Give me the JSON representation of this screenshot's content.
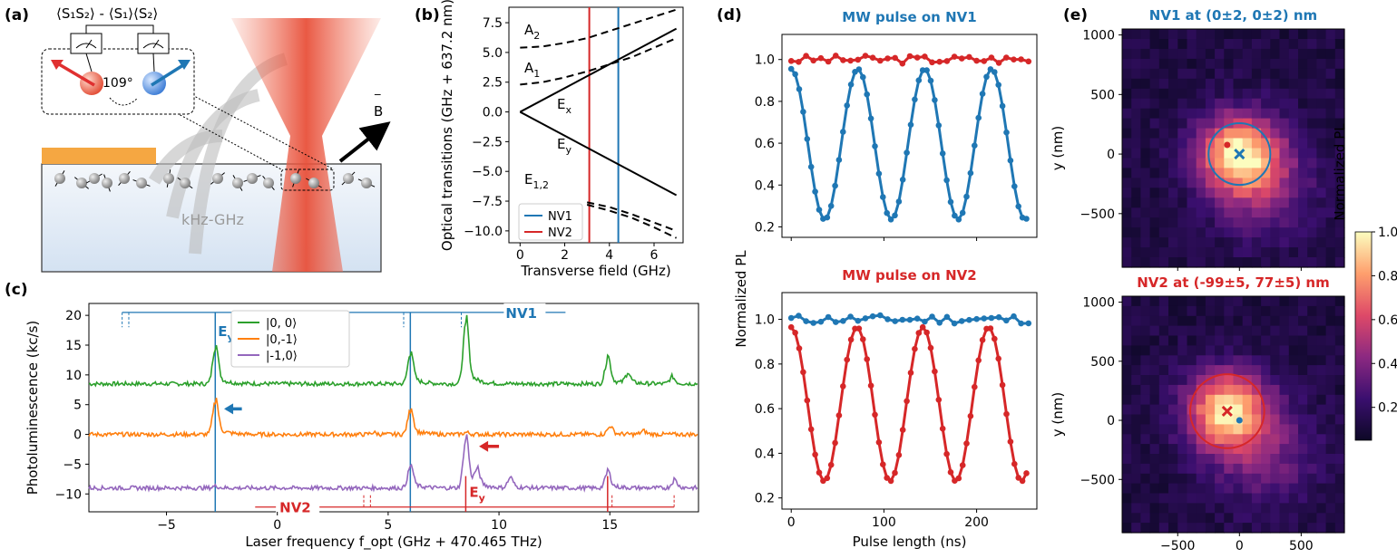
{
  "panel_labels": [
    "(a)",
    "(b)",
    "(c)",
    "(d)",
    "(e)"
  ],
  "panel_a": {
    "correlator_label": "⟨S₁S₂⟩ - ⟨S₁⟩⟨S₂⟩",
    "angle_label": "109°",
    "field_label": "B",
    "band_label": "kHz-GHz",
    "colors": {
      "laser": "#e8503a",
      "gold": "#f5a742",
      "substrate": "#dde8f5",
      "nv1": "#1f77b4",
      "nv2": "#d62728"
    }
  },
  "chart_data": [
    {
      "panel": "(b)",
      "type": "line",
      "xlabel": "Transverse field (GHz)",
      "ylabel": "Optical transitions (GHz + 637.2 nm)",
      "xlim": [
        -0.5,
        7.3
      ],
      "ylim": [
        -11,
        8.8
      ],
      "xticks": [
        0,
        2,
        4,
        6
      ],
      "yticks": [
        -10.0,
        -7.5,
        -5.0,
        -2.5,
        0.0,
        2.5,
        5.0,
        7.5
      ],
      "curve_labels": [
        "A2",
        "A1",
        "Ex",
        "Ey",
        "E1,2"
      ],
      "series": [
        {
          "style": "dashed",
          "x": [
            0,
            1,
            2,
            3,
            4,
            5,
            6,
            7
          ],
          "y": [
            5.4,
            5.5,
            5.8,
            6.2,
            6.8,
            7.4,
            8.0,
            8.6
          ]
        },
        {
          "style": "dashed",
          "x": [
            0,
            1,
            2,
            3,
            4,
            5,
            6,
            7
          ],
          "y": [
            2.3,
            2.5,
            2.9,
            3.4,
            4.0,
            4.6,
            5.4,
            6.2
          ]
        },
        {
          "style": "solid",
          "x": [
            0,
            7
          ],
          "y": [
            0,
            7
          ]
        },
        {
          "style": "solid",
          "x": [
            0,
            7
          ],
          "y": [
            0,
            -7
          ]
        },
        {
          "style": "dashed",
          "x": [
            3,
            4,
            5,
            6,
            7
          ],
          "y": [
            -7.6,
            -8.0,
            -8.6,
            -9.3,
            -10.0
          ]
        },
        {
          "style": "dashed",
          "x": [
            3,
            4,
            5,
            6,
            7
          ],
          "y": [
            -7.8,
            -8.3,
            -8.9,
            -9.7,
            -10.6
          ]
        }
      ],
      "vlines": [
        {
          "name": "NV1",
          "x": 4.4,
          "color": "#1f77b4"
        },
        {
          "name": "NV2",
          "x": 3.1,
          "color": "#d62728"
        }
      ],
      "legend": [
        "NV1",
        "NV2"
      ]
    },
    {
      "panel": "(c)",
      "type": "line",
      "xlabel": "Laser frequency f_opt (GHz + 470.465 THz)",
      "ylabel": "Photoluminescence (kc/s)",
      "xlim": [
        -8.5,
        19
      ],
      "ylim": [
        -13,
        22
      ],
      "xticks": [
        -5,
        0,
        5,
        10,
        15
      ],
      "yticks": [
        -10,
        -5,
        0,
        5,
        10,
        15,
        20
      ],
      "series": [
        {
          "name": "|0, 0⟩",
          "color": "#2ca02c",
          "baseline": 8.5,
          "peaks": [
            [
              -2.8,
              6
            ],
            [
              6.0,
              5
            ],
            [
              8.5,
              10
            ],
            [
              14.9,
              4
            ],
            [
              15.8,
              1.5
            ],
            [
              17.8,
              1
            ]
          ]
        },
        {
          "name": "|0,-1⟩",
          "color": "#ff7f0e",
          "baseline": 0,
          "peaks": [
            [
              -2.8,
              5.5
            ],
            [
              6.0,
              4
            ],
            [
              8.5,
              0.3
            ],
            [
              15.0,
              1.2
            ],
            [
              16.5,
              0.5
            ],
            [
              4.3,
              0.3
            ]
          ]
        },
        {
          "name": "|-1,0⟩",
          "color": "#9467bd",
          "baseline": -9,
          "peaks": [
            [
              -2.8,
              0.3
            ],
            [
              6.0,
              3.5
            ],
            [
              8.5,
              8
            ],
            [
              9.0,
              2.5
            ],
            [
              10.5,
              1.5
            ],
            [
              14.9,
              2.5
            ],
            [
              17.9,
              1.2
            ]
          ]
        }
      ],
      "annotations": {
        "nv1": "NV1",
        "nv2": "NV2",
        "ey": "E",
        "ey_sub": "y"
      },
      "vlines": [
        {
          "x": -2.8,
          "color": "#1f77b4"
        },
        {
          "x": 6.0,
          "color": "#1f77b4"
        },
        {
          "x": 8.5,
          "color": "#d62728"
        },
        {
          "x": 14.9,
          "color": "#d62728"
        }
      ]
    },
    {
      "panel": "(d) top",
      "type": "line",
      "title": "MW pulse on NV1",
      "ylim": [
        0.15,
        1.12
      ],
      "yticks": [
        0.2,
        0.4,
        0.6,
        0.8,
        1.0
      ],
      "xlim": [
        -10,
        265
      ],
      "series": [
        {
          "name": "NV2",
          "color": "#d62728",
          "model": "flat",
          "level": 1.0
        },
        {
          "name": "NV1",
          "color": "#1f77b4",
          "model": "rabi",
          "period": 72,
          "amp": 0.36,
          "center": 0.595
        }
      ]
    },
    {
      "panel": "(d) bottom",
      "type": "line",
      "title": "MW pulse on NV2",
      "xlabel": "Pulse length (ns)",
      "ylim": [
        0.15,
        1.12
      ],
      "yticks": [
        0.2,
        0.4,
        0.6,
        0.8,
        1.0
      ],
      "xticks": [
        0,
        100,
        200
      ],
      "xlim": [
        -10,
        265
      ],
      "series": [
        {
          "name": "NV1",
          "color": "#1f77b4",
          "model": "flat",
          "level": 1.0
        },
        {
          "name": "NV2",
          "color": "#d62728",
          "model": "rabi",
          "period": 71,
          "amp": 0.345,
          "center": 0.62
        }
      ]
    },
    {
      "panel": "(e) top",
      "type": "heatmap",
      "title": "NV1 at (0±2, 0±2) nm",
      "ylabel": "y (nm)",
      "xlim": [
        -950,
        850
      ],
      "ylim": [
        -950,
        1050
      ],
      "yticks": [
        -500,
        0,
        500,
        1000
      ],
      "center": [
        0,
        0
      ],
      "radius": 250
    },
    {
      "panel": "(e) bottom",
      "type": "heatmap",
      "title": "NV2 at (-99±5, 77±5) nm",
      "xlabel": "x (nm)",
      "ylabel": "y (nm)",
      "xlim": [
        -950,
        850
      ],
      "ylim": [
        -950,
        1050
      ],
      "xticks": [
        -500,
        0,
        500
      ],
      "yticks": [
        -500,
        0,
        500,
        1000
      ],
      "center": [
        -99,
        77
      ],
      "radius": 300
    }
  ],
  "shared_d_ylabel": "Normalized PL",
  "colorbar": {
    "label": "Normalized PL",
    "ticks": [
      0.2,
      0.4,
      0.6,
      0.8,
      1.0
    ],
    "range": [
      0.05,
      1.0
    ]
  }
}
